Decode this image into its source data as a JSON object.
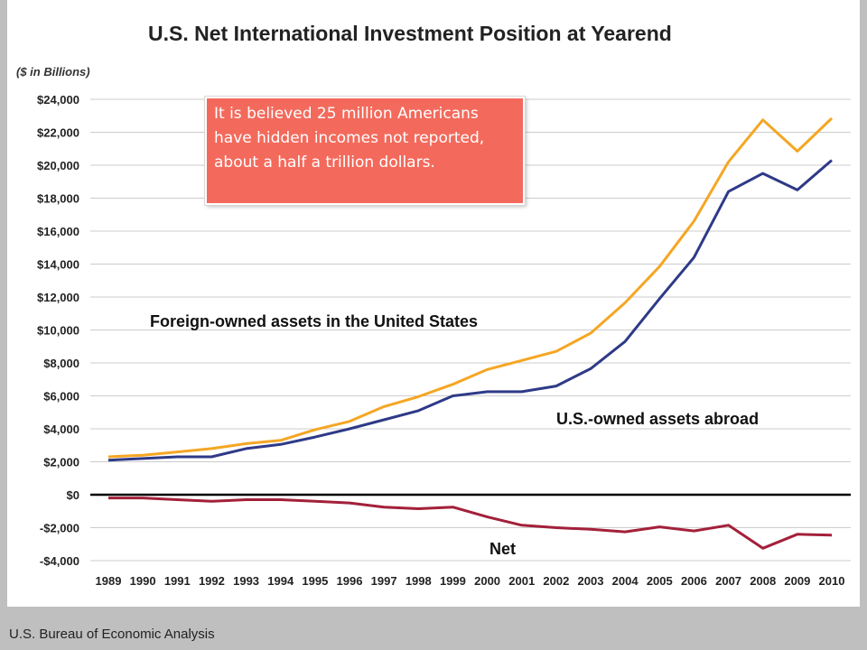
{
  "chart_data": {
    "type": "line",
    "title": "U.S. Net International Investment Position at Yearend",
    "units_label": "($ in Billions)",
    "x": [
      1989,
      1990,
      1991,
      1992,
      1993,
      1994,
      1995,
      1996,
      1997,
      1998,
      1999,
      2000,
      2001,
      2002,
      2003,
      2004,
      2005,
      2006,
      2007,
      2008,
      2009,
      2010
    ],
    "x_tick_labels": [
      "1989",
      "1990",
      "1991",
      "1992",
      "1993",
      "1994",
      "1995",
      "1996",
      "1997",
      "1998",
      "1999",
      "2000",
      "2001",
      "2002",
      "2003",
      "2004",
      "2005",
      "2006",
      "2007",
      "2008",
      "2009",
      "2010"
    ],
    "ylim": [
      -4000,
      24000
    ],
    "y_ticks": [
      -4000,
      -2000,
      0,
      2000,
      4000,
      6000,
      8000,
      10000,
      12000,
      14000,
      16000,
      18000,
      20000,
      22000,
      24000
    ],
    "y_tick_labels": [
      "-$4,000",
      "-$2,000",
      "$0",
      "$2,000",
      "$4,000",
      "$6,000",
      "$8,000",
      "$10,000",
      "$12,000",
      "$14,000",
      "$16,000",
      "$18,000",
      "$20,000",
      "$22,000",
      "$24,000"
    ],
    "grid": true,
    "series": [
      {
        "name": "Foreign-owned assets in the United States",
        "color": "#f5a623",
        "values": [
          2300,
          2400,
          2600,
          2800,
          3100,
          3300,
          3950,
          4450,
          5350,
          5950,
          6700,
          7600,
          8150,
          8700,
          9800,
          11650,
          13850,
          16600,
          20200,
          22750,
          20850,
          22850
        ]
      },
      {
        "name": "U.S.-owned assets abroad",
        "color": "#2e3a87",
        "values": [
          2100,
          2200,
          2300,
          2300,
          2800,
          3050,
          3500,
          4000,
          4550,
          5100,
          6000,
          6250,
          6250,
          6600,
          7650,
          9300,
          11900,
          14400,
          18400,
          19500,
          18500,
          20300
        ]
      },
      {
        "name": "Net",
        "color": "#a3203a",
        "values": [
          -200,
          -200,
          -300,
          -400,
          -300,
          -300,
          -400,
          -500,
          -750,
          -850,
          -750,
          -1350,
          -1850,
          -2000,
          -2100,
          -2250,
          -1950,
          -2200,
          -1850,
          -3250,
          -2400,
          -2450
        ]
      }
    ]
  },
  "annotation": {
    "text": "It is believed 25 million Americans have hidden incomes not reported, about a half a trillion dollars."
  },
  "footer": {
    "source": "U.S. Bureau of Economic Analysis"
  },
  "colors": {
    "background": "#bfbfbf",
    "gridline": "#cccccc",
    "zero_line": "#000000",
    "annotation_fill": "#f36a5c"
  }
}
